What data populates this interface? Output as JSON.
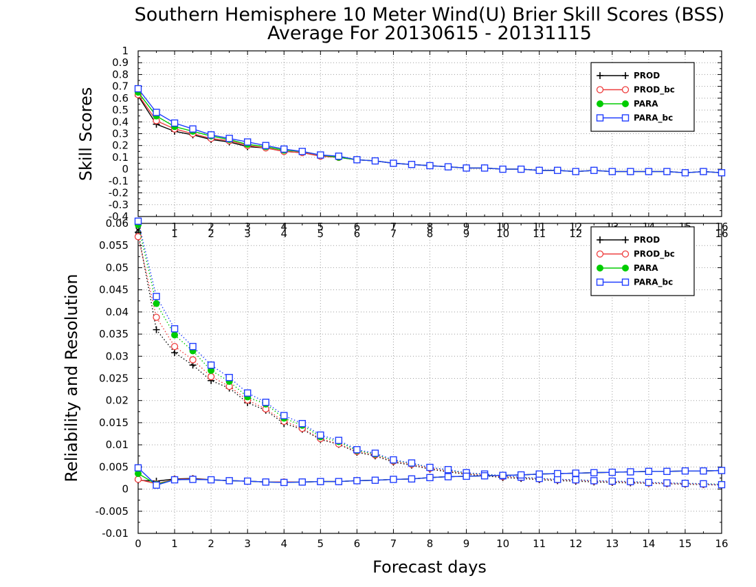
{
  "chart_title": {
    "line1": "Southern Hemisphere 10 Meter Wind(U) Brier Skill Scores (BSS)",
    "line2": "Average For 20130615 - 20131115"
  },
  "colors": {
    "PROD": "#000000",
    "PROD_bc": "#ee3b3b",
    "PARA": "#00cc00",
    "PARA_bc": "#1e3cff",
    "grid": "#9a9a9a"
  },
  "chart_data": [
    {
      "type": "line",
      "ylabel": "Skill Scores",
      "ylim": [
        -0.4,
        1
      ],
      "yticks": [
        "-0.4",
        "-0.3",
        "-0.2",
        "-0.1",
        "0",
        "0.1",
        "0.2",
        "0.3",
        "0.4",
        "0.5",
        "0.6",
        "0.7",
        "0.8",
        "0.9",
        "1"
      ],
      "xticks": [
        "0",
        "1",
        "2",
        "3",
        "4",
        "5",
        "6",
        "7",
        "8",
        "9",
        "10",
        "11",
        "12",
        "13",
        "14",
        "15",
        "16"
      ],
      "xlim": [
        0,
        16
      ],
      "grid": true,
      "legend_position": "top-right",
      "x": [
        0,
        0.5,
        1,
        1.5,
        2,
        2.5,
        3,
        3.5,
        4,
        4.5,
        5,
        5.5,
        6,
        6.5,
        7,
        7.5,
        8,
        8.5,
        9,
        9.5,
        10,
        10.5,
        11,
        11.5,
        12,
        12.5,
        13,
        13.5,
        14,
        14.5,
        15,
        15.5,
        16
      ],
      "series": [
        {
          "name": "PROD",
          "marker": "plus",
          "values": [
            0.62,
            0.38,
            0.32,
            0.29,
            0.25,
            0.23,
            0.19,
            0.18,
            0.15,
            0.14,
            0.11,
            0.1,
            0.08,
            0.07,
            0.05,
            0.04,
            0.03,
            0.02,
            0.01,
            0.01,
            0.0,
            0.0,
            -0.01,
            -0.01,
            -0.02,
            -0.01,
            -0.02,
            -0.02,
            -0.02,
            -0.02,
            -0.03,
            -0.02,
            -0.03
          ]
        },
        {
          "name": "PROD_bc",
          "marker": "open-circle",
          "values": [
            0.63,
            0.41,
            0.34,
            0.3,
            0.26,
            0.24,
            0.2,
            0.18,
            0.15,
            0.14,
            0.11,
            0.1,
            0.08,
            0.07,
            0.05,
            0.04,
            0.03,
            0.02,
            0.01,
            0.01,
            0.0,
            0.0,
            -0.01,
            -0.01,
            -0.02,
            -0.01,
            -0.02,
            -0.02,
            -0.02,
            -0.02,
            -0.03,
            -0.02,
            -0.03
          ]
        },
        {
          "name": "PARA",
          "marker": "filled-circle",
          "values": [
            0.65,
            0.45,
            0.36,
            0.32,
            0.28,
            0.25,
            0.21,
            0.19,
            0.16,
            0.15,
            0.12,
            0.1,
            0.08,
            0.07,
            0.05,
            0.04,
            0.03,
            0.02,
            0.01,
            0.01,
            0.0,
            0.0,
            -0.01,
            -0.01,
            -0.02,
            -0.01,
            -0.02,
            -0.02,
            -0.02,
            -0.02,
            -0.03,
            -0.02,
            -0.03
          ]
        },
        {
          "name": "PARA_bc",
          "marker": "open-square",
          "values": [
            0.68,
            0.48,
            0.39,
            0.34,
            0.29,
            0.26,
            0.23,
            0.2,
            0.17,
            0.15,
            0.12,
            0.11,
            0.08,
            0.07,
            0.05,
            0.04,
            0.03,
            0.02,
            0.01,
            0.01,
            0.0,
            0.0,
            -0.01,
            -0.01,
            -0.02,
            -0.01,
            -0.02,
            -0.02,
            -0.02,
            -0.02,
            -0.03,
            -0.02,
            -0.03
          ]
        }
      ]
    },
    {
      "type": "line",
      "ylabel": "Reliability and Resolution",
      "xlabel": "Forecast days",
      "ylim": [
        -0.01,
        0.06
      ],
      "yticks": [
        "-0.01",
        "-0.005",
        "0",
        "0.005",
        "0.01",
        "0.015",
        "0.02",
        "0.025",
        "0.03",
        "0.035",
        "0.04",
        "0.045",
        "0.05",
        "0.055",
        "0.06"
      ],
      "xticks": [
        "0",
        "1",
        "2",
        "3",
        "4",
        "5",
        "6",
        "7",
        "8",
        "9",
        "10",
        "11",
        "12",
        "13",
        "14",
        "15",
        "16"
      ],
      "xlim": [
        0,
        16
      ],
      "grid": true,
      "legend_position": "top-right",
      "x": [
        0,
        0.5,
        1,
        1.5,
        2,
        2.5,
        3,
        3.5,
        4,
        4.5,
        5,
        5.5,
        6,
        6.5,
        7,
        7.5,
        8,
        8.5,
        9,
        9.5,
        10,
        10.5,
        11,
        11.5,
        12,
        12.5,
        13,
        13.5,
        14,
        14.5,
        15,
        15.5,
        16
      ],
      "resolution_series": [
        {
          "name": "PROD",
          "marker": "plus",
          "values": [
            0.058,
            0.036,
            0.0308,
            0.028,
            0.0245,
            0.0228,
            0.0195,
            0.0178,
            0.0148,
            0.0135,
            0.0112,
            0.0101,
            0.0083,
            0.0075,
            0.0061,
            0.0054,
            0.0045,
            0.0039,
            0.0033,
            0.003,
            0.0026,
            0.0024,
            0.0021,
            0.0019,
            0.0018,
            0.0016,
            0.0015,
            0.0014,
            0.0013,
            0.0012,
            0.0011,
            0.001,
            0.0009
          ]
        },
        {
          "name": "PROD_bc",
          "marker": "open-circle",
          "values": [
            0.057,
            0.0388,
            0.0322,
            0.0292,
            0.0254,
            0.0232,
            0.0201,
            0.0181,
            0.0153,
            0.0137,
            0.0114,
            0.0102,
            0.0085,
            0.0077,
            0.0063,
            0.0056,
            0.0047,
            0.0041,
            0.0035,
            0.0032,
            0.0028,
            0.0026,
            0.0023,
            0.0021,
            0.002,
            0.0018,
            0.0017,
            0.0016,
            0.0014,
            0.0013,
            0.0012,
            0.0011,
            0.001
          ]
        },
        {
          "name": "PARA",
          "marker": "filled-circle",
          "values": [
            0.0597,
            0.0419,
            0.0348,
            0.0312,
            0.0268,
            0.0243,
            0.0208,
            0.0192,
            0.016,
            0.0144,
            0.0118,
            0.0107,
            0.0087,
            0.0079,
            0.0065,
            0.0058,
            0.0049,
            0.0043,
            0.0036,
            0.0034,
            0.003,
            0.0027,
            0.0024,
            0.0022,
            0.0021,
            0.0019,
            0.0018,
            0.0017,
            0.0015,
            0.0014,
            0.0013,
            0.0012,
            0.0011
          ]
        },
        {
          "name": "PARA_bc",
          "marker": "open-square",
          "values": [
            0.0605,
            0.0435,
            0.0362,
            0.0322,
            0.028,
            0.0252,
            0.0217,
            0.0196,
            0.0166,
            0.0148,
            0.0122,
            0.011,
            0.0089,
            0.0081,
            0.0066,
            0.0059,
            0.0049,
            0.0044,
            0.0037,
            0.0034,
            0.003,
            0.0027,
            0.0024,
            0.0022,
            0.0021,
            0.0019,
            0.0018,
            0.0017,
            0.0015,
            0.0014,
            0.0013,
            0.0012,
            0.001
          ]
        }
      ],
      "reliability_series": [
        {
          "name": "PROD",
          "marker": "plus",
          "values": [
            0.002,
            0.0018,
            0.0023,
            0.0024,
            0.0021,
            0.0019,
            0.0018,
            0.0016,
            0.0016,
            0.0016,
            0.0017,
            0.0017,
            0.0019,
            0.002,
            0.0022,
            0.0023,
            0.0026,
            0.0028,
            0.0029,
            0.003,
            0.0031,
            0.0032,
            0.0034,
            0.0035,
            0.0036,
            0.0037,
            0.0038,
            0.0039,
            0.004,
            0.004,
            0.0041,
            0.0041,
            0.0042
          ]
        },
        {
          "name": "PROD_bc",
          "marker": "open-circle",
          "values": [
            0.0022,
            0.0012,
            0.0022,
            0.0023,
            0.0021,
            0.0019,
            0.0018,
            0.0016,
            0.0016,
            0.0016,
            0.0017,
            0.0017,
            0.0019,
            0.002,
            0.0022,
            0.0023,
            0.0026,
            0.0028,
            0.0029,
            0.003,
            0.0031,
            0.0032,
            0.0034,
            0.0035,
            0.0036,
            0.0037,
            0.0038,
            0.0039,
            0.004,
            0.004,
            0.0041,
            0.0041,
            0.0042
          ]
        },
        {
          "name": "PARA",
          "marker": "filled-circle",
          "values": [
            0.0035,
            0.0011,
            0.0021,
            0.0022,
            0.0021,
            0.0019,
            0.0018,
            0.0016,
            0.0015,
            0.0016,
            0.0017,
            0.0017,
            0.0019,
            0.002,
            0.0022,
            0.0023,
            0.0026,
            0.0028,
            0.0029,
            0.003,
            0.0031,
            0.0032,
            0.0034,
            0.0035,
            0.0036,
            0.0037,
            0.0038,
            0.0039,
            0.004,
            0.004,
            0.0041,
            0.0041,
            0.0042
          ]
        },
        {
          "name": "PARA_bc",
          "marker": "open-square",
          "values": [
            0.0048,
            0.0009,
            0.0021,
            0.0022,
            0.0021,
            0.0019,
            0.0018,
            0.0016,
            0.0015,
            0.0016,
            0.0017,
            0.0017,
            0.0019,
            0.002,
            0.0022,
            0.0023,
            0.0026,
            0.0028,
            0.0029,
            0.003,
            0.0031,
            0.0032,
            0.0034,
            0.0035,
            0.0036,
            0.0037,
            0.0038,
            0.0039,
            0.004,
            0.004,
            0.0041,
            0.0041,
            0.0042
          ]
        }
      ]
    }
  ]
}
